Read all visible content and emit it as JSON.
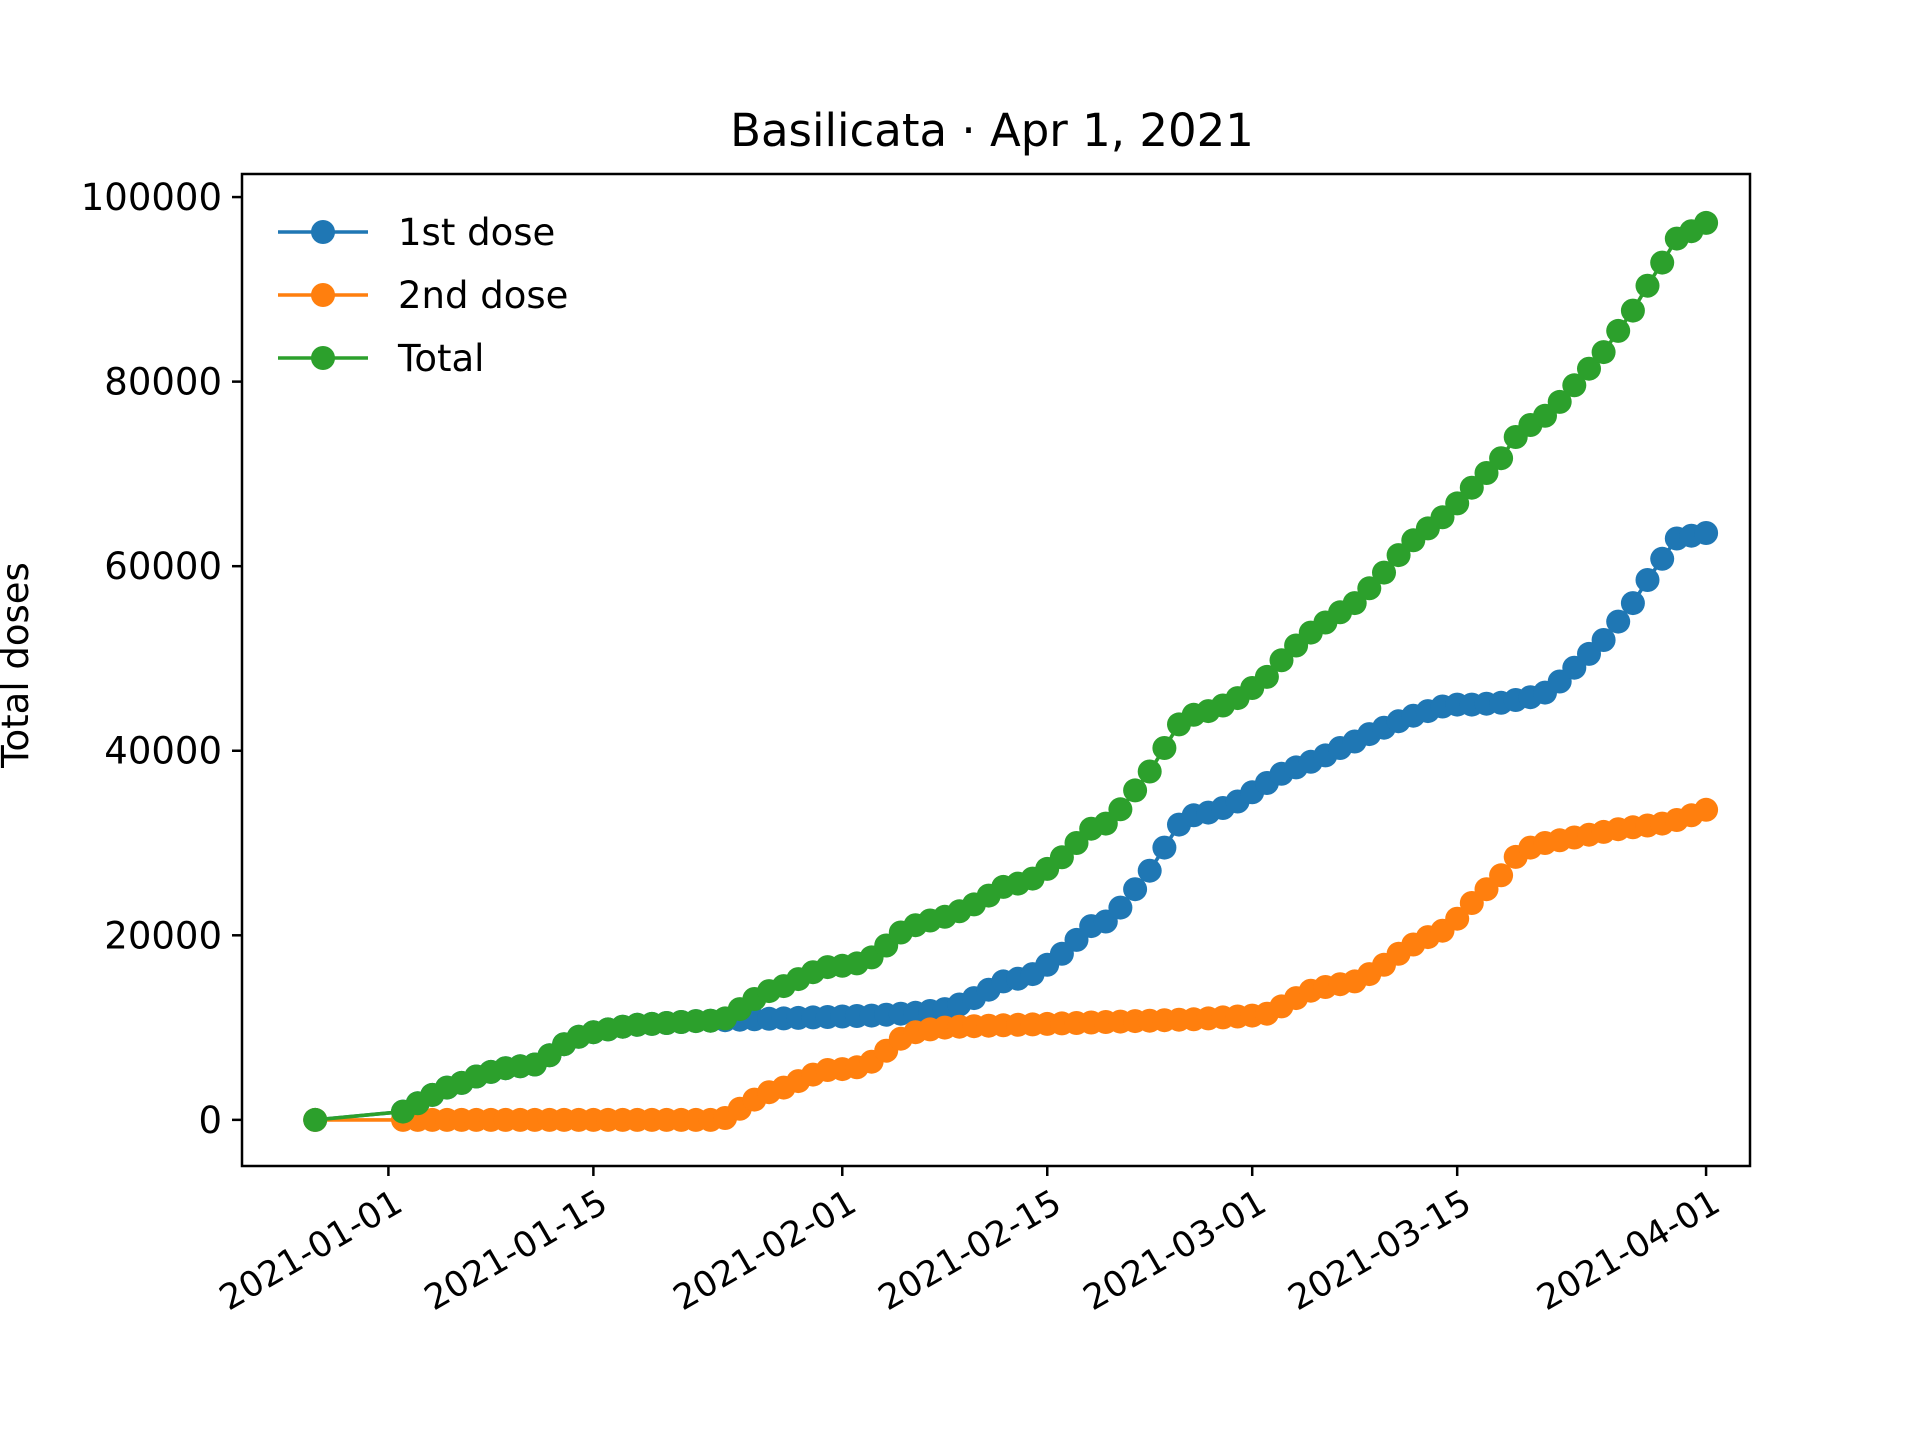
{
  "chart_data": {
    "type": "line",
    "title": "Basilicata · Apr 1, 2021",
    "xlabel": "",
    "ylabel": "Total doses",
    "xlim": [
      "2020-12-22",
      "2021-04-04"
    ],
    "ylim": [
      -5000,
      102500
    ],
    "x_ticks": [
      "2021-01-01",
      "2021-01-15",
      "2021-02-01",
      "2021-02-15",
      "2021-03-01",
      "2021-03-15",
      "2021-04-01"
    ],
    "y_ticks": [
      0,
      20000,
      40000,
      60000,
      80000,
      100000
    ],
    "legend": {
      "placement": "top-left",
      "entries": [
        "1st dose",
        "2nd dose",
        "Total"
      ]
    },
    "grid": false,
    "x": [
      "2020-12-27",
      "2021-01-02",
      "2021-01-03",
      "2021-01-04",
      "2021-01-05",
      "2021-01-06",
      "2021-01-07",
      "2021-01-08",
      "2021-01-09",
      "2021-01-10",
      "2021-01-11",
      "2021-01-12",
      "2021-01-13",
      "2021-01-14",
      "2021-01-15",
      "2021-01-16",
      "2021-01-17",
      "2021-01-18",
      "2021-01-19",
      "2021-01-20",
      "2021-01-21",
      "2021-01-22",
      "2021-01-23",
      "2021-01-24",
      "2021-01-25",
      "2021-01-26",
      "2021-01-27",
      "2021-01-28",
      "2021-01-29",
      "2021-01-30",
      "2021-01-31",
      "2021-02-01",
      "2021-02-02",
      "2021-02-03",
      "2021-02-04",
      "2021-02-05",
      "2021-02-06",
      "2021-02-07",
      "2021-02-08",
      "2021-02-09",
      "2021-02-10",
      "2021-02-11",
      "2021-02-12",
      "2021-02-13",
      "2021-02-14",
      "2021-02-15",
      "2021-02-16",
      "2021-02-17",
      "2021-02-18",
      "2021-02-19",
      "2021-02-20",
      "2021-02-21",
      "2021-02-22",
      "2021-02-23",
      "2021-02-24",
      "2021-02-25",
      "2021-02-26",
      "2021-02-27",
      "2021-02-28",
      "2021-03-01",
      "2021-03-02",
      "2021-03-03",
      "2021-03-04",
      "2021-03-05",
      "2021-03-06",
      "2021-03-07",
      "2021-03-08",
      "2021-03-09",
      "2021-03-10",
      "2021-03-11",
      "2021-03-12",
      "2021-03-13",
      "2021-03-14",
      "2021-03-15",
      "2021-03-16",
      "2021-03-17",
      "2021-03-18",
      "2021-03-19",
      "2021-03-20",
      "2021-03-21",
      "2021-03-22",
      "2021-03-23",
      "2021-03-24",
      "2021-03-25",
      "2021-03-26",
      "2021-03-27",
      "2021-03-28",
      "2021-03-29",
      "2021-03-30",
      "2021-03-31",
      "2021-04-01"
    ],
    "series": [
      {
        "name": "1st dose",
        "color": "#1f77b4",
        "values": [
          0,
          900,
          1800,
          2700,
          3500,
          4000,
          4700,
          5200,
          5600,
          5800,
          6000,
          7000,
          8200,
          9000,
          9500,
          9800,
          10100,
          10300,
          10400,
          10500,
          10600,
          10700,
          10750,
          10800,
          10850,
          10900,
          10950,
          11000,
          11050,
          11100,
          11150,
          11200,
          11250,
          11300,
          11400,
          11500,
          11600,
          11800,
          12000,
          12500,
          13200,
          14100,
          15000,
          15300,
          15800,
          16800,
          18000,
          19500,
          21000,
          21500,
          23000,
          25000,
          27000,
          29500,
          32000,
          33000,
          33300,
          33800,
          34500,
          35500,
          36500,
          37500,
          38200,
          38800,
          39500,
          40300,
          41000,
          41800,
          42500,
          43200,
          43800,
          44300,
          44800,
          45000,
          45000,
          45100,
          45200,
          45500,
          45800,
          46300,
          47500,
          49000,
          50500,
          52000,
          54000,
          56000,
          58500,
          60800,
          63000,
          63300,
          63600
        ]
      },
      {
        "name": "2nd dose",
        "color": "#ff7f0e",
        "values": [
          0,
          0,
          0,
          0,
          0,
          0,
          0,
          0,
          0,
          0,
          0,
          0,
          0,
          0,
          0,
          0,
          0,
          0,
          0,
          0,
          0,
          0,
          0,
          200,
          1200,
          2200,
          3000,
          3500,
          4200,
          4900,
          5400,
          5500,
          5700,
          6300,
          7500,
          8800,
          9500,
          9800,
          10000,
          10100,
          10150,
          10200,
          10250,
          10300,
          10350,
          10400,
          10450,
          10500,
          10550,
          10600,
          10650,
          10700,
          10750,
          10800,
          10850,
          10900,
          11000,
          11100,
          11200,
          11300,
          11500,
          12300,
          13200,
          14000,
          14400,
          14700,
          15000,
          15800,
          16800,
          18000,
          19000,
          19800,
          20500,
          21800,
          23500,
          25000,
          26500,
          28500,
          29500,
          30000,
          30300,
          30600,
          30900,
          31200,
          31500,
          31700,
          31900,
          32100,
          32500,
          33000,
          33600
        ]
      },
      {
        "name": "Total",
        "color": "#2ca02c",
        "values": [
          0,
          900,
          1800,
          2700,
          3500,
          4000,
          4700,
          5200,
          5600,
          5800,
          6000,
          7000,
          8200,
          9000,
          9500,
          9800,
          10100,
          10300,
          10400,
          10500,
          10600,
          10700,
          10750,
          11000,
          12000,
          13100,
          13950,
          14500,
          15250,
          16000,
          16550,
          16700,
          16950,
          17600,
          18900,
          20300,
          21100,
          21600,
          22000,
          22600,
          23350,
          24300,
          25250,
          25600,
          26150,
          27200,
          28450,
          30000,
          31550,
          32100,
          33650,
          35700,
          37750,
          40300,
          42850,
          43900,
          44300,
          44900,
          45700,
          46800,
          48000,
          49800,
          51400,
          52800,
          53900,
          55000,
          56000,
          57600,
          59300,
          61200,
          62800,
          64100,
          65300,
          66800,
          68500,
          70100,
          71700,
          74000,
          75300,
          76300,
          77800,
          79600,
          81400,
          83200,
          85500,
          87700,
          90400,
          92900,
          95500,
          96300,
          97200
        ]
      }
    ]
  }
}
